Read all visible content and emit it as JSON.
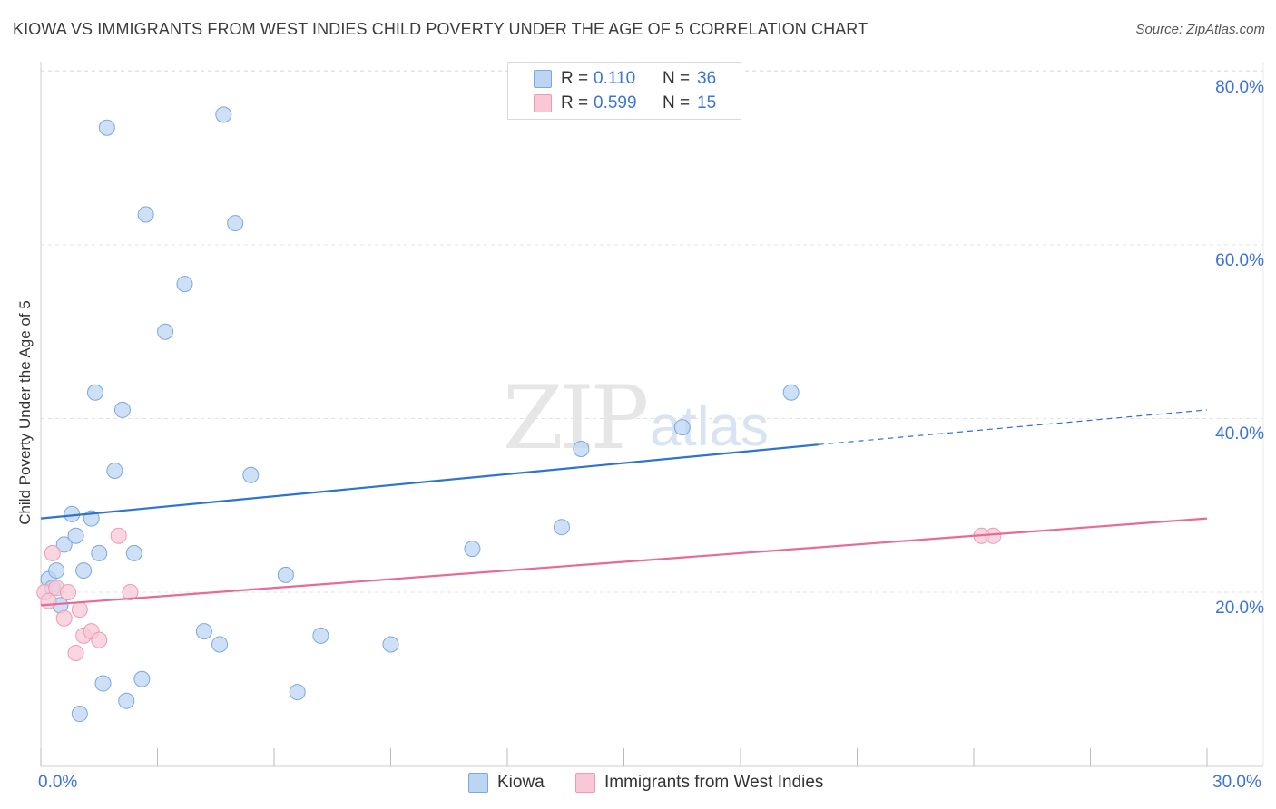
{
  "header": {
    "title": "KIOWA VS IMMIGRANTS FROM WEST INDIES CHILD POVERTY UNDER THE AGE OF 5 CORRELATION CHART",
    "source": "Source: ZipAtlas.com"
  },
  "watermark": {
    "zip": "ZIP",
    "atlas": "atlas"
  },
  "legend": {
    "rows": [
      {
        "r_label": "R =",
        "r_value": "0.110",
        "n_label": "N =",
        "n_value": "36",
        "color": "#a9c8f0"
      },
      {
        "r_label": "R =",
        "r_value": "0.599",
        "n_label": "N =",
        "n_value": "15",
        "color": "#f6b8cb"
      }
    ]
  },
  "bottom_legend": {
    "kiowa": "Kiowa",
    "west_indies": "Immigrants from West Indies"
  },
  "axis": {
    "y_label": "Child Poverty Under the Age of 5",
    "y_ticks": [
      "80.0%",
      "60.0%",
      "40.0%",
      "20.0%"
    ],
    "x_min_label": "0.0%",
    "x_max_label": "30.0%"
  },
  "colors": {
    "kiowa_fill": "#bcd5f3",
    "kiowa_stroke": "#7aa8e0",
    "kiowa_line": "#2f73d2",
    "wi_fill": "#f8c8d7",
    "wi_stroke": "#ee9ab4",
    "wi_line": "#e66b96",
    "grid": "#e3e3e3",
    "tick_text": "#3b74d6"
  },
  "chart_data": {
    "type": "scatter",
    "title": "KIOWA VS IMMIGRANTS FROM WEST INDIES CHILD POVERTY UNDER THE AGE OF 5 CORRELATION CHART",
    "xlabel": "",
    "ylabel": "Child Poverty Under the Age of 5",
    "xlim": [
      0,
      30
    ],
    "ylim": [
      0,
      85
    ],
    "y_ticks": [
      20,
      40,
      60,
      80
    ],
    "grid": true,
    "series": [
      {
        "name": "Kiowa",
        "R": 0.11,
        "N": 36,
        "points": [
          [
            0.2,
            21.5
          ],
          [
            0.3,
            20.5
          ],
          [
            0.4,
            22.5
          ],
          [
            0.5,
            18.5
          ],
          [
            0.6,
            25.5
          ],
          [
            0.8,
            29.0
          ],
          [
            0.9,
            26.5
          ],
          [
            1.1,
            22.5
          ],
          [
            1.3,
            28.5
          ],
          [
            1.4,
            43.0
          ],
          [
            1.5,
            24.5
          ],
          [
            1.6,
            9.5
          ],
          [
            1.7,
            73.5
          ],
          [
            1.9,
            34.0
          ],
          [
            2.1,
            41.0
          ],
          [
            2.2,
            7.5
          ],
          [
            2.4,
            24.5
          ],
          [
            2.6,
            10.0
          ],
          [
            2.7,
            63.5
          ],
          [
            3.2,
            50.0
          ],
          [
            3.7,
            55.5
          ],
          [
            4.2,
            15.5
          ],
          [
            4.6,
            14.0
          ],
          [
            4.7,
            75.0
          ],
          [
            5.0,
            62.5
          ],
          [
            5.4,
            33.5
          ],
          [
            6.3,
            22.0
          ],
          [
            6.6,
            8.5
          ],
          [
            7.2,
            15.0
          ],
          [
            9.0,
            14.0
          ],
          [
            11.1,
            25.0
          ],
          [
            13.4,
            27.5
          ],
          [
            13.9,
            36.5
          ],
          [
            16.5,
            39.0
          ],
          [
            19.3,
            43.0
          ],
          [
            1.0,
            6.0
          ]
        ],
        "trend": {
          "x": [
            0,
            20.0
          ],
          "y": [
            28.5,
            37.0
          ],
          "dashed_to": [
            30.0,
            41.0
          ]
        }
      },
      {
        "name": "Immigrants from West Indies",
        "R": 0.599,
        "N": 15,
        "points": [
          [
            0.1,
            20.0
          ],
          [
            0.2,
            19.0
          ],
          [
            0.3,
            24.5
          ],
          [
            0.4,
            20.5
          ],
          [
            0.6,
            17.0
          ],
          [
            0.7,
            20.0
          ],
          [
            0.9,
            13.0
          ],
          [
            1.0,
            18.0
          ],
          [
            1.1,
            15.0
          ],
          [
            1.3,
            15.5
          ],
          [
            1.5,
            14.5
          ],
          [
            2.0,
            26.5
          ],
          [
            2.3,
            20.0
          ],
          [
            24.2,
            26.5
          ],
          [
            24.5,
            26.5
          ]
        ],
        "trend": {
          "x": [
            0,
            30.0
          ],
          "y": [
            18.5,
            28.5
          ]
        }
      }
    ]
  }
}
